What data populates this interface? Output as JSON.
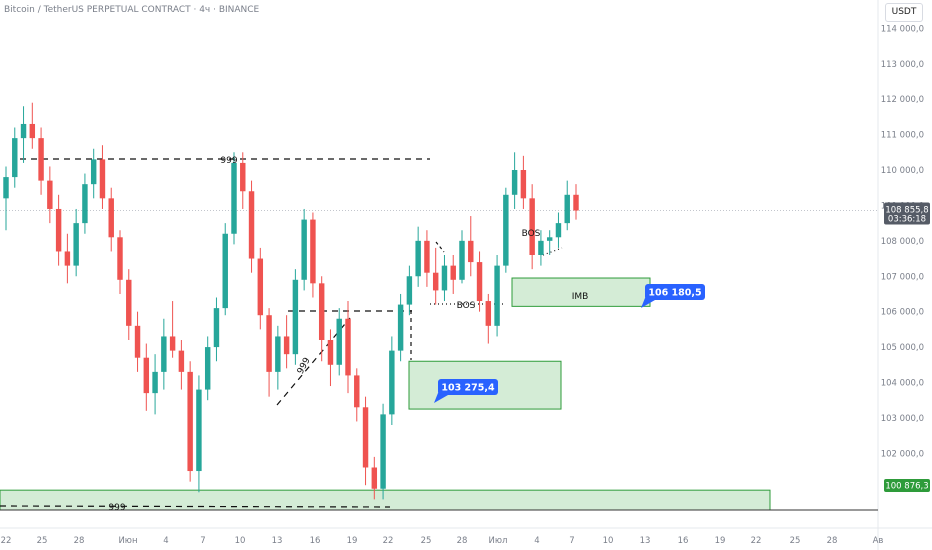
{
  "header": {
    "title": "Bitcoin / TetherUS PERPETUAL CONTRACT · 4ч · BINANCE",
    "currency": "USDT"
  },
  "price_badges": {
    "last_price": "108 855,8",
    "countdown": "03:36:18",
    "level_price": "100 876,3"
  },
  "colors": {
    "up": "#26a69a",
    "down": "#ef5350",
    "zone_fill": "#d4ecd6",
    "zone_border": "#2e9b3a",
    "callout": "#2962ff",
    "axis_text": "#7a7f8a"
  },
  "chart_data": {
    "type": "candlestick",
    "y_scale": "linear",
    "ylim": [
      100400,
      114800
    ],
    "grid": false,
    "y_ticks": [
      102000,
      103000,
      104000,
      105000,
      106000,
      107000,
      108000,
      109000,
      110000,
      111000,
      112000,
      113000,
      114000
    ],
    "y_tick_labels": [
      "102 000,0",
      "103 000,0",
      "104 000,0",
      "105 000,0",
      "106 000,0",
      "107 000,0",
      "108 000,0",
      "109 000,0",
      "110 000,0",
      "111 000,0",
      "112 000,0",
      "113 000,0",
      "114 000,0"
    ],
    "x_ticks": [
      "22",
      "25",
      "28",
      "Июн",
      "4",
      "7",
      "10",
      "13",
      "16",
      "19",
      "22",
      "25",
      "28",
      "Июл",
      "4",
      "7",
      "10",
      "13",
      "16",
      "19",
      "22",
      "25",
      "28",
      "Ав"
    ],
    "last_price": 108855.8,
    "candles": [
      {
        "o": 109200,
        "h": 110100,
        "l": 108300,
        "c": 109800
      },
      {
        "o": 109800,
        "h": 111200,
        "l": 109500,
        "c": 110900
      },
      {
        "o": 110900,
        "h": 111800,
        "l": 110200,
        "c": 111300
      },
      {
        "o": 111300,
        "h": 111900,
        "l": 110600,
        "c": 110900
      },
      {
        "o": 110900,
        "h": 111200,
        "l": 109300,
        "c": 109700
      },
      {
        "o": 109700,
        "h": 110100,
        "l": 108500,
        "c": 108900
      },
      {
        "o": 108900,
        "h": 109300,
        "l": 107300,
        "c": 107700
      },
      {
        "o": 107700,
        "h": 108200,
        "l": 106800,
        "c": 107300
      },
      {
        "o": 107300,
        "h": 108900,
        "l": 107000,
        "c": 108500
      },
      {
        "o": 108500,
        "h": 109900,
        "l": 108200,
        "c": 109600
      },
      {
        "o": 109600,
        "h": 110600,
        "l": 109200,
        "c": 110300
      },
      {
        "o": 110300,
        "h": 110700,
        "l": 108900,
        "c": 109200
      },
      {
        "o": 109200,
        "h": 109500,
        "l": 107700,
        "c": 108100
      },
      {
        "o": 108100,
        "h": 108300,
        "l": 106500,
        "c": 106900
      },
      {
        "o": 106900,
        "h": 107200,
        "l": 105200,
        "c": 105600
      },
      {
        "o": 105600,
        "h": 106000,
        "l": 104300,
        "c": 104700
      },
      {
        "o": 104700,
        "h": 105100,
        "l": 103200,
        "c": 103700
      },
      {
        "o": 103700,
        "h": 104800,
        "l": 103100,
        "c": 104300
      },
      {
        "o": 104300,
        "h": 105800,
        "l": 103800,
        "c": 105300
      },
      {
        "o": 105300,
        "h": 106300,
        "l": 104700,
        "c": 104900
      },
      {
        "o": 104900,
        "h": 105200,
        "l": 103800,
        "c": 104300
      },
      {
        "o": 104300,
        "h": 104600,
        "l": 101200,
        "c": 101500
      },
      {
        "o": 101500,
        "h": 104200,
        "l": 100900,
        "c": 103800
      },
      {
        "o": 103800,
        "h": 105300,
        "l": 103500,
        "c": 105000
      },
      {
        "o": 105000,
        "h": 106400,
        "l": 104600,
        "c": 106100
      },
      {
        "o": 106100,
        "h": 108500,
        "l": 105900,
        "c": 108200
      },
      {
        "o": 108200,
        "h": 110500,
        "l": 107900,
        "c": 110200
      },
      {
        "o": 110200,
        "h": 110500,
        "l": 108900,
        "c": 109400
      },
      {
        "o": 109400,
        "h": 109700,
        "l": 107100,
        "c": 107500
      },
      {
        "o": 107500,
        "h": 107800,
        "l": 105500,
        "c": 105900
      },
      {
        "o": 105900,
        "h": 106100,
        "l": 103600,
        "c": 104300
      },
      {
        "o": 104300,
        "h": 105600,
        "l": 103800,
        "c": 105300
      },
      {
        "o": 105300,
        "h": 105900,
        "l": 104400,
        "c": 104800
      },
      {
        "o": 104800,
        "h": 107200,
        "l": 104500,
        "c": 106900
      },
      {
        "o": 106900,
        "h": 108900,
        "l": 106600,
        "c": 108600
      },
      {
        "o": 108600,
        "h": 108800,
        "l": 106400,
        "c": 106800
      },
      {
        "o": 106800,
        "h": 107000,
        "l": 104600,
        "c": 105200
      },
      {
        "o": 105200,
        "h": 105500,
        "l": 103900,
        "c": 104500
      },
      {
        "o": 104500,
        "h": 106100,
        "l": 104200,
        "c": 105800
      },
      {
        "o": 105800,
        "h": 106300,
        "l": 103700,
        "c": 104200
      },
      {
        "o": 104200,
        "h": 104400,
        "l": 102900,
        "c": 103300
      },
      {
        "o": 103300,
        "h": 103600,
        "l": 101100,
        "c": 101600
      },
      {
        "o": 101600,
        "h": 101900,
        "l": 100700,
        "c": 101000
      },
      {
        "o": 101000,
        "h": 103400,
        "l": 100700,
        "c": 103100
      },
      {
        "o": 103100,
        "h": 105300,
        "l": 102800,
        "c": 104900
      },
      {
        "o": 104900,
        "h": 106500,
        "l": 104600,
        "c": 106200
      },
      {
        "o": 106200,
        "h": 107300,
        "l": 105900,
        "c": 107000
      },
      {
        "o": 107000,
        "h": 108400,
        "l": 106700,
        "c": 108000
      },
      {
        "o": 108000,
        "h": 108300,
        "l": 106700,
        "c": 107100
      },
      {
        "o": 107100,
        "h": 107800,
        "l": 106200,
        "c": 106600
      },
      {
        "o": 106600,
        "h": 107600,
        "l": 106300,
        "c": 107300
      },
      {
        "o": 107300,
        "h": 107600,
        "l": 106500,
        "c": 106900
      },
      {
        "o": 106900,
        "h": 108300,
        "l": 106800,
        "c": 108000
      },
      {
        "o": 108000,
        "h": 108700,
        "l": 107000,
        "c": 107400
      },
      {
        "o": 107400,
        "h": 107700,
        "l": 106000,
        "c": 106300
      },
      {
        "o": 106300,
        "h": 106500,
        "l": 105100,
        "c": 105600
      },
      {
        "o": 105600,
        "h": 107600,
        "l": 105300,
        "c": 107300
      },
      {
        "o": 107300,
        "h": 109500,
        "l": 107100,
        "c": 109300
      },
      {
        "o": 109300,
        "h": 110500,
        "l": 108900,
        "c": 110000
      },
      {
        "o": 110000,
        "h": 110400,
        "l": 108900,
        "c": 109200
      },
      {
        "o": 109200,
        "h": 109600,
        "l": 107200,
        "c": 107600
      },
      {
        "o": 107600,
        "h": 108300,
        "l": 107300,
        "c": 108000
      },
      {
        "o": 108000,
        "h": 108300,
        "l": 107600,
        "c": 108100
      },
      {
        "o": 108100,
        "h": 108800,
        "l": 107800,
        "c": 108500
      },
      {
        "o": 108500,
        "h": 109700,
        "l": 108300,
        "c": 109300
      },
      {
        "o": 109300,
        "h": 109600,
        "l": 108600,
        "c": 108856
      }
    ],
    "annotations": [
      {
        "type": "label",
        "text": "999"
      },
      {
        "type": "label",
        "text": "999"
      },
      {
        "type": "label",
        "text": "999"
      },
      {
        "type": "label",
        "text": "BOS"
      },
      {
        "type": "label",
        "text": "BOS"
      },
      {
        "type": "label",
        "text": "IMB"
      },
      {
        "type": "callout",
        "text": "103 275,4",
        "value": 103275.4
      },
      {
        "type": "callout",
        "text": "106 180,5",
        "value": 106180.5
      }
    ],
    "zones": [
      {
        "from": 103250,
        "to": 104600
      },
      {
        "from": 106150,
        "to": 106950
      },
      {
        "from": 100400,
        "to": 100960
      }
    ]
  }
}
